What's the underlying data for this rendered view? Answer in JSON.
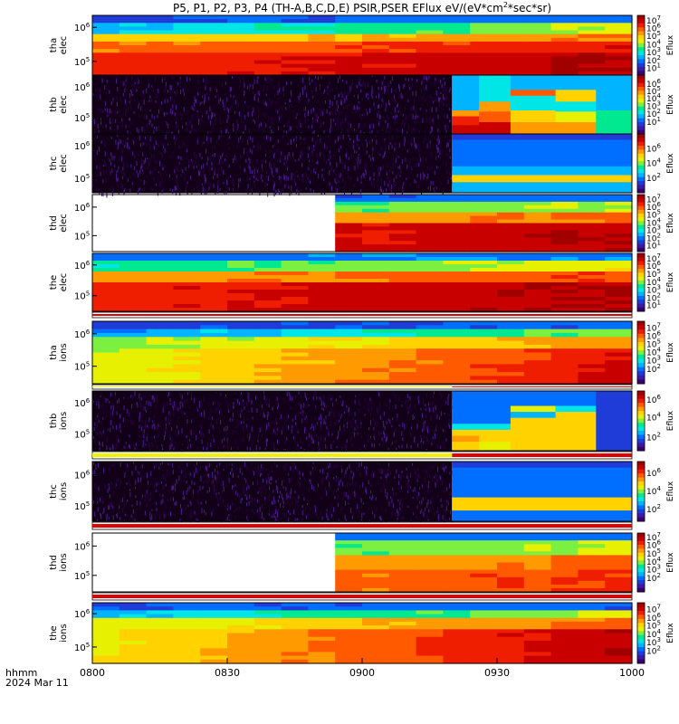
{
  "title": "P5, P1, P2, P3, P4 (TH-A,B,C,D,E) PSIR,PSER EFlux eV/(eV*cm2*sec*sr)",
  "title_parts": {
    "main": "P5, P1, P2, P3, P4 (TH-A,B,C,D,E) PSIR,PSER EFlux eV/(eV*cm",
    "superscript": "2",
    "tail": "*sec*sr)"
  },
  "time_axis": {
    "label_line1": "hhmm",
    "label_line2": "2024 Mar 11",
    "range": [
      "08:00",
      "10:00"
    ],
    "ticks": [
      {
        "label": "0800",
        "minutes": 0
      },
      {
        "label": "0830",
        "minutes": 30
      },
      {
        "label": "0900",
        "minutes": 60
      },
      {
        "label": "0930",
        "minutes": 90
      },
      {
        "label": "1000",
        "minutes": 120
      }
    ]
  },
  "colorbar_label": "Eflux",
  "colormap": [
    "#3a006e",
    "#3c1aa8",
    "#1f3cd8",
    "#006eff",
    "#00b4ff",
    "#00e6e6",
    "#00e890",
    "#7cf040",
    "#e6f000",
    "#ffd200",
    "#ff9a00",
    "#ff5a00",
    "#f01e00",
    "#c80000",
    "#a00000"
  ],
  "chart_data": [
    {
      "type": "heatmap",
      "probe": "tha",
      "species": "elec",
      "ylabel": "tha\nelec",
      "y_ticks": [
        {
          "label": "10",
          "exp": "6",
          "frac": 0.2
        },
        {
          "label": "10",
          "exp": "5",
          "frac": 0.77
        }
      ],
      "cbar_ticks": [
        {
          "exp": "7",
          "frac": 0.09
        },
        {
          "exp": "6",
          "frac": 0.22
        },
        {
          "exp": "5",
          "frac": 0.35
        },
        {
          "exp": "4",
          "frac": 0.49
        },
        {
          "exp": "3",
          "frac": 0.62
        },
        {
          "exp": "2",
          "frac": 0.76
        },
        {
          "exp": "1",
          "frac": 0.89
        }
      ],
      "data_start_min": 0,
      "flux_bands": [
        {
          "until_row": 0.13,
          "start": 0.15,
          "end": 0.22
        },
        {
          "until_row": 0.3,
          "start": 0.3,
          "end": 0.55
        },
        {
          "until_row": 0.45,
          "start": 0.62,
          "end": 0.75
        },
        {
          "until_row": 0.62,
          "start": 0.74,
          "end": 0.88
        },
        {
          "until_row": 1.0,
          "start": 0.84,
          "end": 0.97
        }
      ],
      "noise_until_min": null
    },
    {
      "type": "heatmap",
      "probe": "thb",
      "species": "elec",
      "ylabel": "thb\nelec",
      "y_ticks": [
        {
          "label": "10",
          "exp": "6",
          "frac": 0.2
        },
        {
          "label": "10",
          "exp": "5",
          "frac": 0.72
        }
      ],
      "cbar_ticks": [
        {
          "exp": "6",
          "frac": 0.15
        },
        {
          "exp": "5",
          "frac": 0.28
        },
        {
          "exp": "4",
          "frac": 0.4
        },
        {
          "exp": "3",
          "frac": 0.53
        },
        {
          "exp": "2",
          "frac": 0.66
        },
        {
          "exp": "1",
          "frac": 0.8
        }
      ],
      "data_start_min": 0,
      "noise_until_min": 80,
      "after_noise_blocks": [
        {
          "from_min": 80,
          "to_min": 86,
          "rows": [
            [
              "#00b4ff",
              0,
              0.6
            ],
            [
              "#ff9a00",
              0.6,
              0.7
            ],
            [
              "#f01e00",
              0.7,
              0.85
            ],
            [
              "#c80000",
              0.85,
              1
            ]
          ]
        },
        {
          "from_min": 86,
          "to_min": 93,
          "rows": [
            [
              "#00e6e6",
              0,
              0.45
            ],
            [
              "#ff9a00",
              0.45,
              0.62
            ],
            [
              "#ff5a00",
              0.62,
              0.8
            ],
            [
              "#c80000",
              0.8,
              1
            ]
          ]
        },
        {
          "from_min": 93,
          "to_min": 103,
          "rows": [
            [
              "#00b4ff",
              0,
              0.25
            ],
            [
              "#ff5a00",
              0.25,
              0.35
            ],
            [
              "#00e6e6",
              0.35,
              0.6
            ],
            [
              "#ffd200",
              0.6,
              0.8
            ],
            [
              "#ff9a00",
              0.8,
              1
            ]
          ]
        },
        {
          "from_min": 103,
          "to_min": 112,
          "rows": [
            [
              "#00b4ff",
              0,
              0.25
            ],
            [
              "#ffd200",
              0.25,
              0.45
            ],
            [
              "#00e6e6",
              0.45,
              0.62
            ],
            [
              "#e6f000",
              0.62,
              0.8
            ],
            [
              "#ff9a00",
              0.8,
              1
            ]
          ]
        },
        {
          "from_min": 112,
          "to_min": 120,
          "rows": [
            [
              "#00b4ff",
              0,
              0.6
            ],
            [
              "#00e890",
              0.6,
              1
            ]
          ]
        }
      ]
    },
    {
      "type": "heatmap",
      "probe": "thc",
      "species": "elec",
      "ylabel": "thc\nelec",
      "y_ticks": [
        {
          "label": "10",
          "exp": "6",
          "frac": 0.2
        },
        {
          "label": "10",
          "exp": "5",
          "frac": 0.75
        }
      ],
      "cbar_ticks": [
        {
          "exp": "6",
          "frac": 0.25
        },
        {
          "exp": "4",
          "frac": 0.5
        },
        {
          "exp": "2",
          "frac": 0.75
        }
      ],
      "data_start_min": 0,
      "noise_until_min": 80,
      "after_noise_blocks": [
        {
          "from_min": 80,
          "to_min": 120,
          "rows": [
            [
              "#1f3cd8",
              0,
              0.1
            ],
            [
              "#006eff",
              0.1,
              0.55
            ],
            [
              "#00b4ff",
              0.55,
              0.7
            ],
            [
              "#ffd200",
              0.7,
              0.82
            ],
            [
              "#00b4ff",
              0.82,
              1
            ]
          ]
        }
      ]
    },
    {
      "type": "heatmap",
      "probe": "thd",
      "species": "elec",
      "ylabel": "thd\nelec",
      "y_ticks": [
        {
          "label": "10",
          "exp": "6",
          "frac": 0.22
        },
        {
          "label": "10",
          "exp": "5",
          "frac": 0.72
        }
      ],
      "cbar_ticks": [
        {
          "exp": "7",
          "frac": 0.09
        },
        {
          "exp": "6",
          "frac": 0.22
        },
        {
          "exp": "5",
          "frac": 0.36
        },
        {
          "exp": "4",
          "frac": 0.5
        },
        {
          "exp": "3",
          "frac": 0.63
        },
        {
          "exp": "2",
          "frac": 0.77
        },
        {
          "exp": "1",
          "frac": 0.9
        }
      ],
      "data_start_min": 52.5,
      "flux_bands": [
        {
          "until_row": 0.12,
          "start": 0.15,
          "end": 0.22
        },
        {
          "until_row": 0.3,
          "start": 0.35,
          "end": 0.55
        },
        {
          "until_row": 0.5,
          "start": 0.62,
          "end": 0.78
        },
        {
          "until_row": 1.0,
          "start": 0.84,
          "end": 0.96
        }
      ],
      "noise_until_min": null
    },
    {
      "type": "heatmap",
      "probe": "the",
      "species": "elec",
      "ylabel": "the\nelec",
      "y_ticks": [
        {
          "label": "10",
          "exp": "6",
          "frac": 0.2
        },
        {
          "label": "10",
          "exp": "5",
          "frac": 0.73
        }
      ],
      "cbar_ticks": [
        {
          "exp": "7",
          "frac": 0.09
        },
        {
          "exp": "6",
          "frac": 0.22
        },
        {
          "exp": "5",
          "frac": 0.36
        },
        {
          "exp": "4",
          "frac": 0.5
        },
        {
          "exp": "3",
          "frac": 0.63
        },
        {
          "exp": "2",
          "frac": 0.77
        },
        {
          "exp": "1",
          "frac": 0.9
        }
      ],
      "data_start_min": 0,
      "flux_bands": [
        {
          "until_row": 0.12,
          "start": 0.22,
          "end": 0.25
        },
        {
          "until_row": 0.3,
          "start": 0.4,
          "end": 0.6
        },
        {
          "until_row": 0.5,
          "start": 0.7,
          "end": 0.82
        },
        {
          "until_row": 1.0,
          "start": 0.86,
          "end": 0.97
        }
      ],
      "noise_until_min": null,
      "mode_bar": [
        {
          "from_min": 0,
          "to_min": 120,
          "color": "#e00000"
        }
      ]
    },
    {
      "type": "heatmap",
      "probe": "tha",
      "species": "ions",
      "ylabel": "tha\nions",
      "y_ticks": [
        {
          "label": "10",
          "exp": "6",
          "frac": 0.2
        },
        {
          "label": "10",
          "exp": "5",
          "frac": 0.72
        }
      ],
      "cbar_ticks": [
        {
          "exp": "7",
          "frac": 0.11
        },
        {
          "exp": "6",
          "frac": 0.24
        },
        {
          "exp": "5",
          "frac": 0.37
        },
        {
          "exp": "4",
          "frac": 0.5
        },
        {
          "exp": "3",
          "frac": 0.63
        },
        {
          "exp": "2",
          "frac": 0.77
        }
      ],
      "data_start_min": 0,
      "flux_bands": [
        {
          "until_row": 0.12,
          "start": 0.15,
          "end": 0.2
        },
        {
          "until_row": 0.28,
          "start": 0.25,
          "end": 0.5
        },
        {
          "until_row": 0.45,
          "start": 0.5,
          "end": 0.72
        },
        {
          "until_row": 0.7,
          "start": 0.55,
          "end": 0.88
        },
        {
          "until_row": 1.0,
          "start": 0.56,
          "end": 0.92
        }
      ],
      "noise_until_min": null,
      "mode_bar": [
        {
          "from_min": 0,
          "to_min": 80,
          "color": "#f0f000"
        },
        {
          "from_min": 80,
          "to_min": 120,
          "color": "#e00000"
        }
      ]
    },
    {
      "type": "heatmap",
      "probe": "thb",
      "species": "ions",
      "ylabel": "thb\nions",
      "y_ticks": [
        {
          "label": "10",
          "exp": "6",
          "frac": 0.2
        },
        {
          "label": "10",
          "exp": "5",
          "frac": 0.72
        }
      ],
      "cbar_ticks": [
        {
          "exp": "6",
          "frac": 0.15
        },
        {
          "exp": "4",
          "frac": 0.45
        },
        {
          "exp": "2",
          "frac": 0.78
        }
      ],
      "data_start_min": 0,
      "noise_until_min": 80,
      "after_noise_blocks": [
        {
          "from_min": 80,
          "to_min": 86,
          "rows": [
            [
              "#006eff",
              0,
              0.55
            ],
            [
              "#00e6e6",
              0.55,
              0.65
            ],
            [
              "#ffd200",
              0.65,
              0.75
            ],
            [
              "#ff9a00",
              0.75,
              0.85
            ],
            [
              "#ffd200",
              0.85,
              1
            ]
          ]
        },
        {
          "from_min": 86,
          "to_min": 93,
          "rows": [
            [
              "#006eff",
              0,
              0.55
            ],
            [
              "#00e6e6",
              0.55,
              0.65
            ],
            [
              "#ffd200",
              0.65,
              0.85
            ],
            [
              "#e6f000",
              0.85,
              1
            ]
          ]
        },
        {
          "from_min": 93,
          "to_min": 103,
          "rows": [
            [
              "#006eff",
              0,
              0.25
            ],
            [
              "#e6f000",
              0.25,
              0.35
            ],
            [
              "#00b4ff",
              0.35,
              0.45
            ],
            [
              "#ffd200",
              0.45,
              1
            ]
          ]
        },
        {
          "from_min": 103,
          "to_min": 112,
          "rows": [
            [
              "#006eff",
              0,
              0.25
            ],
            [
              "#00e6e6",
              0.25,
              0.35
            ],
            [
              "#ffd200",
              0.35,
              1
            ]
          ]
        },
        {
          "from_min": 112,
          "to_min": 120,
          "rows": [
            [
              "#1f3cd8",
              0,
              1
            ]
          ]
        }
      ],
      "mode_bar": [
        {
          "from_min": 0,
          "to_min": 80,
          "color": "#f0f000"
        },
        {
          "from_min": 80,
          "to_min": 120,
          "color": "#e00000"
        }
      ]
    },
    {
      "type": "heatmap",
      "probe": "thc",
      "species": "ions",
      "ylabel": "thc\nions",
      "y_ticks": [
        {
          "label": "10",
          "exp": "6",
          "frac": 0.22
        },
        {
          "label": "10",
          "exp": "5",
          "frac": 0.74
        }
      ],
      "cbar_ticks": [
        {
          "exp": "6",
          "frac": 0.2
        },
        {
          "exp": "4",
          "frac": 0.5
        },
        {
          "exp": "2",
          "frac": 0.8
        }
      ],
      "data_start_min": 0,
      "noise_until_min": 80,
      "after_noise_blocks": [
        {
          "from_min": 80,
          "to_min": 120,
          "rows": [
            [
              "#1f3cd8",
              0,
              0.1
            ],
            [
              "#006eff",
              0.1,
              0.6
            ],
            [
              "#ffd200",
              0.6,
              0.82
            ],
            [
              "#006eff",
              0.82,
              1
            ]
          ]
        }
      ],
      "mode_bar": [
        {
          "from_min": 0,
          "to_min": 120,
          "color": "#e00000"
        }
      ]
    },
    {
      "type": "heatmap",
      "probe": "thd",
      "species": "ions",
      "ylabel": "thd\nions",
      "y_ticks": [
        {
          "label": "10",
          "exp": "6",
          "frac": 0.22
        },
        {
          "label": "10",
          "exp": "5",
          "frac": 0.72
        }
      ],
      "cbar_ticks": [
        {
          "exp": "7",
          "frac": 0.08
        },
        {
          "exp": "6",
          "frac": 0.21
        },
        {
          "exp": "5",
          "frac": 0.35
        },
        {
          "exp": "4",
          "frac": 0.49
        },
        {
          "exp": "3",
          "frac": 0.62
        },
        {
          "exp": "2",
          "frac": 0.77
        }
      ],
      "data_start_min": 52.5,
      "flux_bands": [
        {
          "until_row": 0.15,
          "start": 0.2,
          "end": 0.22
        },
        {
          "until_row": 0.35,
          "start": 0.4,
          "end": 0.55
        },
        {
          "until_row": 0.6,
          "start": 0.62,
          "end": 0.78
        },
        {
          "until_row": 1.0,
          "start": 0.7,
          "end": 0.84
        }
      ],
      "noise_until_min": null,
      "mode_bar": [
        {
          "from_min": 0,
          "to_min": 120,
          "color": "#e00000"
        }
      ]
    },
    {
      "type": "heatmap",
      "probe": "the",
      "species": "ions",
      "ylabel": "the\nions",
      "y_ticks": [
        {
          "label": "10",
          "exp": "6",
          "frac": 0.18
        },
        {
          "label": "10",
          "exp": "5",
          "frac": 0.73
        }
      ],
      "cbar_ticks": [
        {
          "exp": "7",
          "frac": 0.11
        },
        {
          "exp": "6",
          "frac": 0.25
        },
        {
          "exp": "5",
          "frac": 0.38
        },
        {
          "exp": "4",
          "frac": 0.52
        },
        {
          "exp": "3",
          "frac": 0.66
        },
        {
          "exp": "2",
          "frac": 0.8
        }
      ],
      "data_start_min": 0,
      "flux_bands": [
        {
          "until_row": 0.12,
          "start": 0.18,
          "end": 0.2
        },
        {
          "until_row": 0.25,
          "start": 0.3,
          "end": 0.55
        },
        {
          "until_row": 0.45,
          "start": 0.55,
          "end": 0.78
        },
        {
          "until_row": 1.0,
          "start": 0.6,
          "end": 0.95
        }
      ],
      "noise_until_min": null
    }
  ]
}
